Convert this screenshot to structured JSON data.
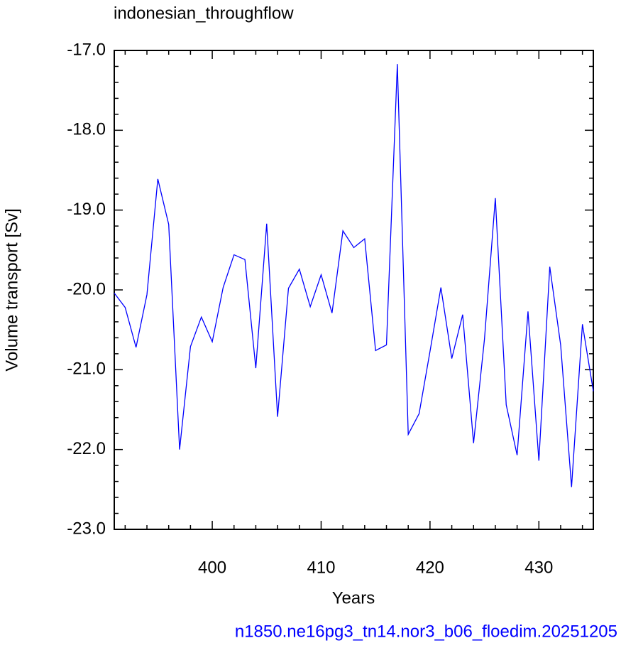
{
  "chart_data": {
    "type": "line",
    "title": "indonesian_throughflow",
    "xlabel": "Years",
    "ylabel": "Volume transport [Sv]",
    "footer": "n1850.ne16pg3_tn14.nor3_b06_floedim.20251205",
    "x": [
      391,
      392,
      393,
      394,
      395,
      396,
      397,
      398,
      399,
      400,
      401,
      402,
      403,
      404,
      405,
      406,
      407,
      408,
      409,
      410,
      411,
      412,
      413,
      414,
      415,
      416,
      417,
      418,
      419,
      420,
      421,
      422,
      423,
      424,
      425,
      426,
      427,
      428,
      429,
      430,
      431,
      432,
      433,
      434,
      435
    ],
    "series": [
      {
        "color": "#0000ff",
        "values": [
          -20.04,
          -20.22,
          -20.72,
          -20.06,
          -18.61,
          -19.18,
          -22.0,
          -20.71,
          -20.34,
          -20.65,
          -19.97,
          -19.56,
          -19.62,
          -20.98,
          -19.17,
          -21.59,
          -19.98,
          -19.74,
          -20.21,
          -19.81,
          -20.29,
          -19.26,
          -19.47,
          -19.36,
          -20.76,
          -20.69,
          -17.17,
          -21.81,
          -21.55,
          -20.77,
          -19.97,
          -20.86,
          -20.31,
          -21.92,
          -20.62,
          -18.85,
          -21.44,
          -22.07,
          -20.27,
          -22.14,
          -19.71,
          -20.69,
          -22.47,
          -20.43,
          -21.27
        ]
      }
    ],
    "xlim": [
      391,
      435
    ],
    "ylim": [
      -23,
      -17
    ],
    "xticks": [
      400,
      410,
      420,
      430
    ],
    "yticks": [
      {
        "value": -17,
        "label": "-17.0"
      },
      {
        "value": -18,
        "label": "-18.0"
      },
      {
        "value": -19,
        "label": "-19.0"
      },
      {
        "value": -20,
        "label": "-20.0"
      },
      {
        "value": -21,
        "label": "-21.0"
      },
      {
        "value": -22,
        "label": "-22.0"
      },
      {
        "value": -23,
        "label": "-23.0"
      }
    ],
    "xminorticks": [
      392,
      394,
      396,
      398,
      402,
      404,
      406,
      408,
      412,
      414,
      416,
      418,
      422,
      424,
      426,
      428,
      432,
      434
    ],
    "yminorticks": [
      -17.2,
      -17.4,
      -17.6,
      -17.8,
      -18.2,
      -18.4,
      -18.6,
      -18.8,
      -19.2,
      -19.4,
      -19.6,
      -19.8,
      -20.2,
      -20.4,
      -20.6,
      -20.8,
      -21.2,
      -21.4,
      -21.6,
      -21.8,
      -22.2,
      -22.4,
      -22.6,
      -22.8
    ],
    "footer_color": "#0000ff"
  }
}
